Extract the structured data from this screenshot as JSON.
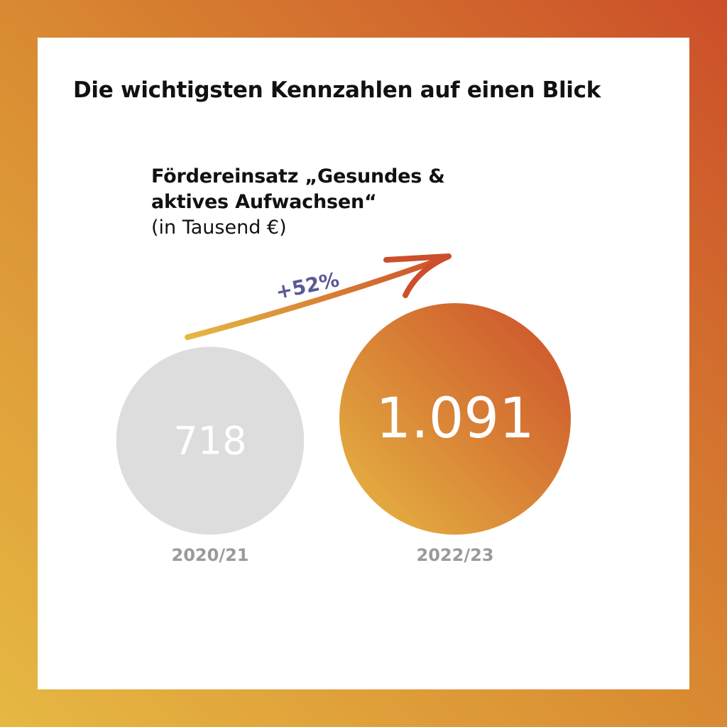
{
  "title": "Die wichtigsten Kennzahlen auf einen Blick",
  "colors": {
    "gradient_start": "#e6b843",
    "gradient_end": "#cc4e2a",
    "circle_past": "#dddddd",
    "growth_label": "#5a5a96",
    "year_label": "#9a9a9a"
  },
  "chart_data": {
    "type": "bubble",
    "title_lines": [
      "Fördereinsatz „Gesundes &",
      "aktives Aufwachsen“"
    ],
    "unit": "(in Tausend €)",
    "categories": [
      "2020/21",
      "2022/23"
    ],
    "values": [
      718,
      1091
    ],
    "value_labels": [
      "718",
      "1.091"
    ],
    "change_label": "+52%"
  }
}
